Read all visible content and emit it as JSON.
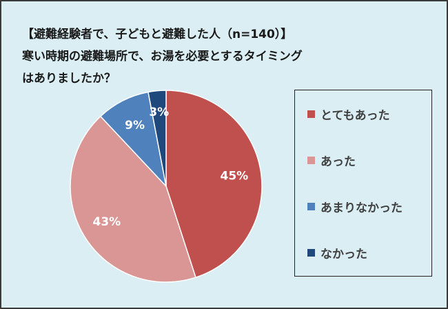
{
  "chart_data": {
    "type": "pie",
    "title": [
      "【避難経験者で、子どもと避難した人（n=140）】",
      "寒い時期の避難場所で、お湯を必要とするタイミング",
      "はありましたか？"
    ],
    "categories": [
      "とてもあった",
      "あった",
      "あまりなかった",
      "なかった"
    ],
    "values": [
      45,
      43,
      9,
      3
    ],
    "labels": [
      "45%",
      "43%",
      "9%",
      "3%"
    ],
    "colors": [
      "#C0504D",
      "#D99694",
      "#4F81BD",
      "#1F497D"
    ],
    "legend_position": "right",
    "start": "top",
    "direction": "clockwise"
  }
}
